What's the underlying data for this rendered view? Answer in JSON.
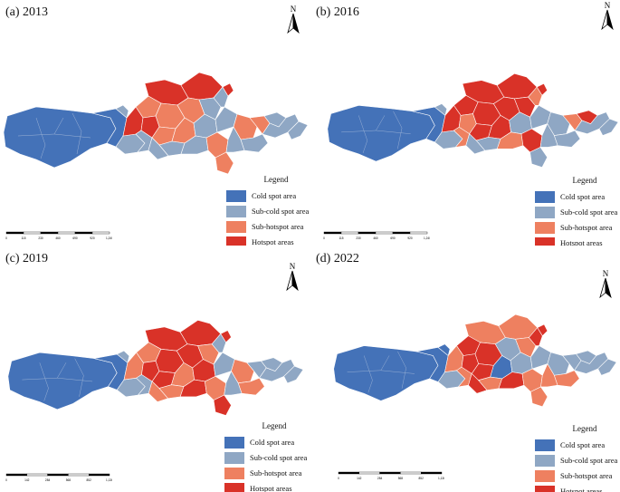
{
  "legend_items": [
    {
      "label": "Cold spot area",
      "color": "#4472b8"
    },
    {
      "label": "Sub-cold spot area",
      "color": "#8fa7c4"
    },
    {
      "label": "Sub-hotspot area",
      "color": "#ee8060"
    },
    {
      "label": "Hotspot areas",
      "color": "#d93228"
    }
  ],
  "panels": [
    {
      "label": "(a) 2013",
      "legend_title": "Legend",
      "north": "N",
      "scale_ticks": [
        "0",
        "115",
        "230",
        "460",
        "690",
        "920",
        "1,240"
      ]
    },
    {
      "label": "(b) 2016",
      "legend_title": "Legend",
      "north": "N",
      "scale_ticks": [
        "0",
        "115",
        "230",
        "460",
        "690",
        "920",
        "1,240"
      ]
    },
    {
      "label": "(c) 2019",
      "legend_title": "Legend",
      "north": "N",
      "scale_ticks": [
        "0",
        "142",
        "284",
        "568",
        "852",
        "1,136"
      ]
    },
    {
      "label": "(d) 2022",
      "legend_title": "Legend",
      "north": "N",
      "scale_ticks": [
        "0",
        "142",
        "284",
        "568",
        "852",
        "1,136"
      ]
    }
  ]
}
